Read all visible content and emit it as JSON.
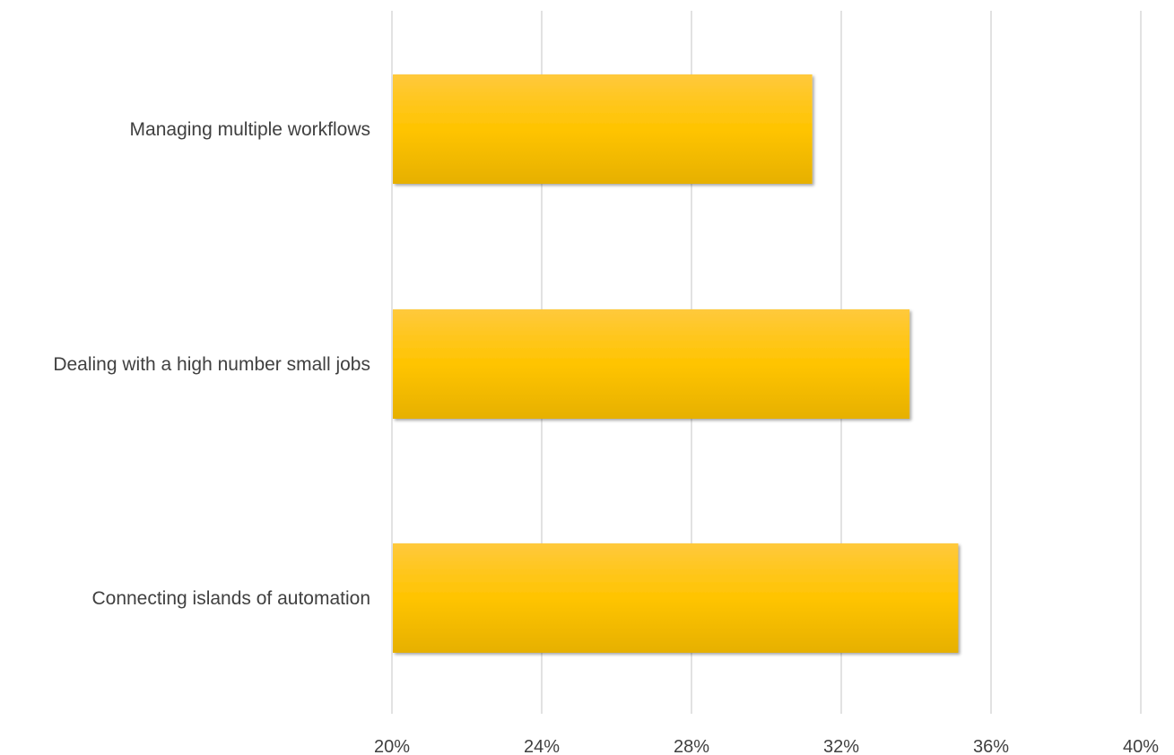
{
  "chart_data": {
    "type": "bar",
    "orientation": "horizontal",
    "categories": [
      "Managing multiple workflows",
      "Dealing with a high number small jobs",
      "Connecting islands of automation"
    ],
    "values": [
      31.2,
      33.8,
      35.1
    ],
    "value_unit": "%",
    "xlim": [
      20,
      40
    ],
    "xticks": [
      20,
      24,
      28,
      32,
      36,
      40
    ],
    "xtick_labels": [
      "20%",
      "24%",
      "28%",
      "32%",
      "36%",
      "40%"
    ],
    "title": "",
    "xlabel": "",
    "ylabel": "",
    "grid": "vertical",
    "legend": "none",
    "colors": {
      "bar_top": "#FFC93C",
      "bar_mid": "#FFC400",
      "bar_bottom": "#E6B000",
      "grid": "#d9d9d9",
      "text": "#404040"
    }
  }
}
